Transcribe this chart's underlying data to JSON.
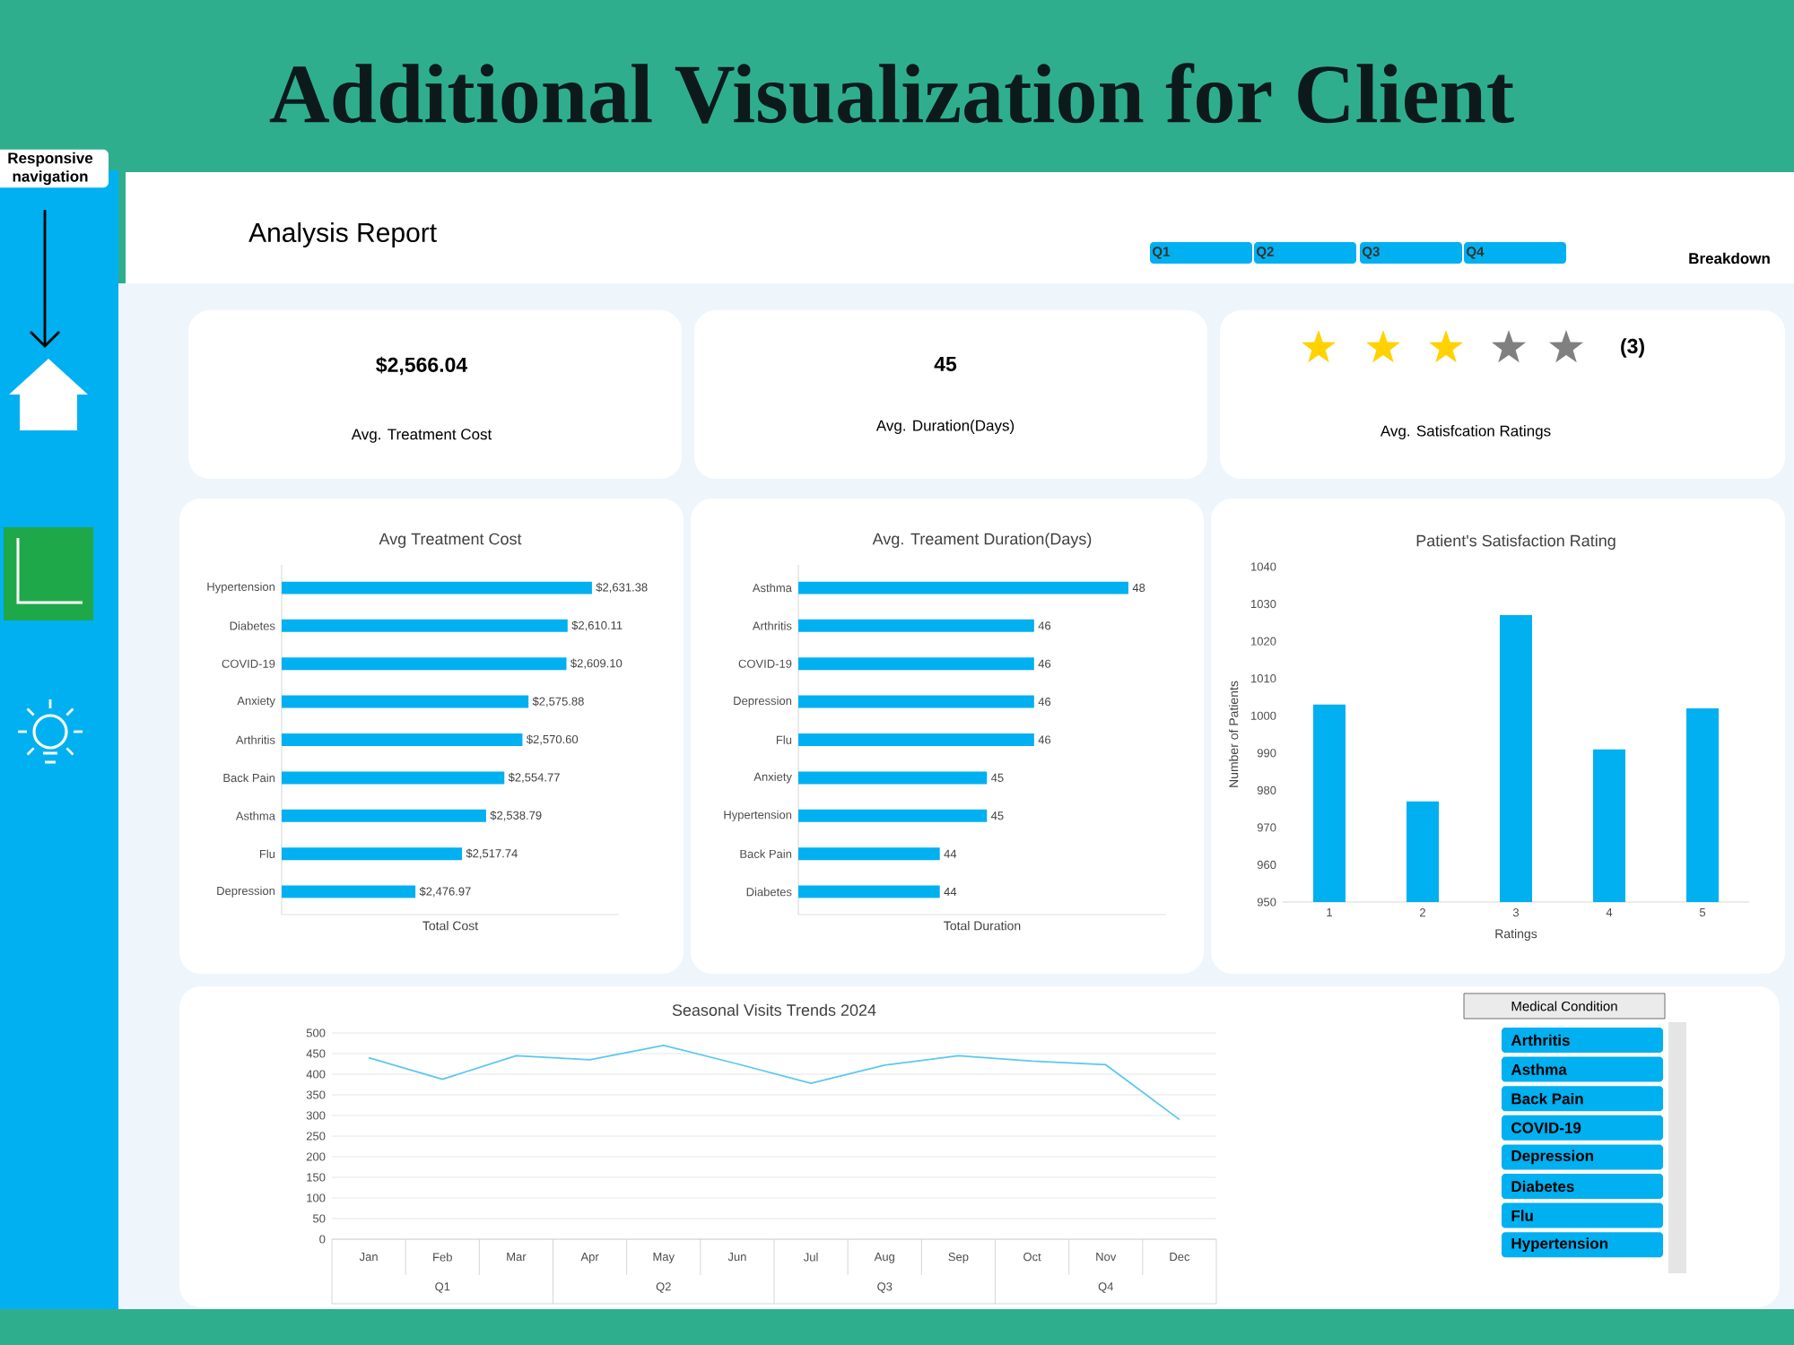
{
  "chart_data": [
    {
      "type": "other",
      "title": "Additional Visualization for Client",
      "subtitle": "Analysis Report",
      "annotations": [
        "Responsive navigation",
        "Q1",
        "Q2",
        "Q3",
        "Q4",
        "Breakdown",
        "$2,566.04",
        "Avg. Treatment Cost",
        "45",
        "Avg. Duration(Days)",
        "(3)",
        "Avg. Satisfcation Ratings",
        "Medical Condition",
        "Arthritis",
        "Asthma",
        "Back Pain",
        "COVID-19",
        "Depression",
        "Diabetes",
        "Flu",
        "Hypertension"
      ]
    },
    {
      "type": "bar",
      "orientation": "horizontal",
      "title": "Avg Treatment Cost",
      "xlabel": "Total Cost",
      "categories": [
        "Hypertension",
        "Diabetes",
        "COVID-19",
        "Anxiety",
        "Arthritis",
        "Back Pain",
        "Asthma",
        "Flu",
        "Depression"
      ],
      "values": [
        2631.38,
        2610.11,
        2609.1,
        2575.88,
        2570.6,
        2554.77,
        2538.79,
        2517.74,
        2476.97
      ],
      "value_labels": [
        "$2,631.38",
        "$2,610.11",
        "$2,609.10",
        "$2,575.88",
        "$2,570.60",
        "$2,554.77",
        "$2,538.79",
        "$2,517.74",
        "$2,476.97"
      ],
      "color": "#00b0f0",
      "xlim": [
        2360,
        2655
      ],
      "tick_labels": "y"
    },
    {
      "type": "bar",
      "orientation": "horizontal",
      "title": "Avg. Treament Duration(Days)",
      "xlabel": "Total Duration",
      "categories": [
        "Asthma",
        "Arthritis",
        "COVID-19",
        "Depression",
        "Flu",
        "Anxiety",
        "Hypertension",
        "Back Pain",
        "Diabetes"
      ],
      "values": [
        48,
        46,
        46,
        46,
        46,
        45,
        45,
        44,
        44
      ],
      "data_labels": true,
      "color": "#00b0f0",
      "xlim": [
        41,
        48.8
      ],
      "tick_labels": "y"
    },
    {
      "type": "bar",
      "title": "Patient's Satisfaction Rating",
      "xlabel": "Ratings",
      "ylabel": "Number of Patients",
      "categories": [
        "1",
        "2",
        "3",
        "4",
        "5"
      ],
      "values": [
        1003,
        977,
        1027,
        991,
        1002
      ],
      "color": "#00b0f0",
      "ylim": [
        950,
        1040
      ],
      "yticks": [
        950,
        960,
        970,
        980,
        990,
        1000,
        1010,
        1020,
        1030,
        1040
      ]
    },
    {
      "type": "line",
      "title": "Seasonal Visits Trends 2024",
      "categories": [
        "Jan",
        "Feb",
        "Mar",
        "Apr",
        "May",
        "Jun",
        "Jul",
        "Aug",
        "Sep",
        "Oct",
        "Nov",
        "Dec"
      ],
      "values": [
        440,
        388,
        445,
        435,
        470,
        425,
        378,
        422,
        445,
        432,
        423,
        290
      ],
      "color": "#5bc8f0",
      "ylim": [
        0,
        500
      ],
      "yticks": [
        0,
        50,
        100,
        150,
        200,
        250,
        300,
        350,
        400,
        450,
        500
      ],
      "grid": "y",
      "annotations": [
        "Q1",
        "Q2",
        "Q3",
        "Q4"
      ]
    }
  ]
}
